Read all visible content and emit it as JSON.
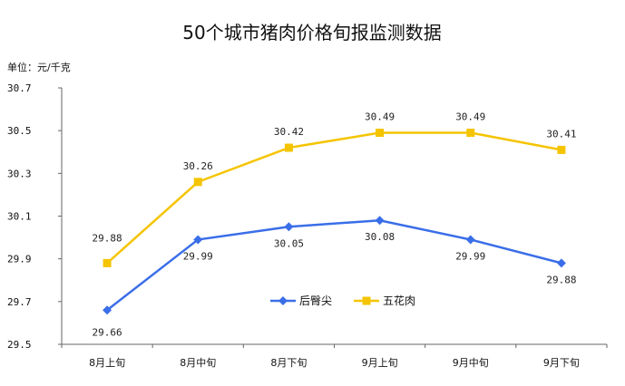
{
  "chart_data": {
    "type": "line",
    "title": "50个城市猪肉价格旬报监测数据",
    "unit_label": "单位：元/千克",
    "categories": [
      "8月上旬",
      "8月中旬",
      "8月下旬",
      "9月上旬",
      "9月中旬",
      "9月下旬"
    ],
    "ylim": [
      29.5,
      30.7
    ],
    "yticks": [
      "29.5",
      "29.7",
      "29.9",
      "30.1",
      "30.3",
      "30.5",
      "30.7"
    ],
    "grid": false,
    "legend_position": "bottom-center",
    "series": [
      {
        "name": "后臀尖",
        "color": "#3a6ee8",
        "marker": "diamond",
        "values": [
          29.66,
          29.99,
          30.05,
          30.08,
          29.99,
          29.88
        ],
        "labels": [
          "29.66",
          "29.99",
          "30.05",
          "30.08",
          "29.99",
          "29.88"
        ]
      },
      {
        "name": "五花肉",
        "color": "#f5c400",
        "marker": "square",
        "values": [
          29.88,
          30.26,
          30.42,
          30.49,
          30.49,
          30.41
        ],
        "labels": [
          "29.88",
          "30.26",
          "30.42",
          "30.49",
          "30.49",
          "30.41"
        ]
      }
    ]
  }
}
